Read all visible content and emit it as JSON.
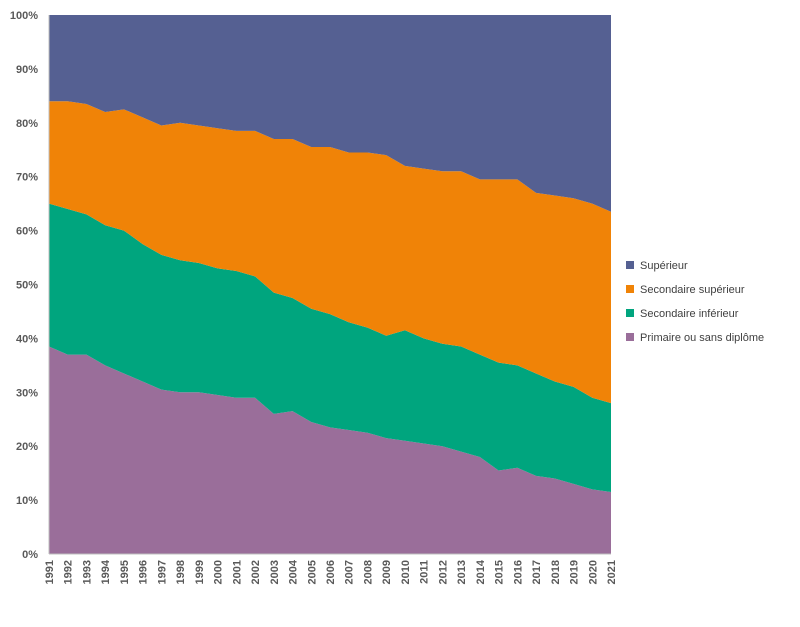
{
  "chart_data": {
    "type": "area",
    "stacked": "percent",
    "x": [
      "1991",
      "1992",
      "1993",
      "1994",
      "1995",
      "1996",
      "1997",
      "1998",
      "1999",
      "2000",
      "2001",
      "2002",
      "2003",
      "2004",
      "2005",
      "2006",
      "2007",
      "2008",
      "2009",
      "2010",
      "2011",
      "2012",
      "2013",
      "2014",
      "2015",
      "2016",
      "2017",
      "2018",
      "2019",
      "2020",
      "2021"
    ],
    "ylim": [
      0,
      100
    ],
    "yticks": [
      "0%",
      "10%",
      "20%",
      "30%",
      "40%",
      "50%",
      "60%",
      "70%",
      "80%",
      "90%",
      "100%"
    ],
    "legend_position": "right",
    "grid": false,
    "series": [
      {
        "name": "Primaire ou sans diplôme",
        "color": "#9A6E9A",
        "values": [
          38.5,
          37.0,
          37.0,
          35.0,
          33.5,
          32.0,
          30.5,
          30.0,
          30.0,
          29.5,
          29.0,
          29.0,
          26.0,
          26.5,
          24.5,
          23.5,
          23.0,
          22.5,
          21.5,
          21.0,
          20.5,
          20.0,
          19.0,
          18.0,
          15.5,
          16.0,
          14.5,
          14.0,
          13.0,
          12.0,
          11.5
        ]
      },
      {
        "name": "Secondaire inférieur",
        "color": "#00A57E",
        "values": [
          26.5,
          27.0,
          26.0,
          26.0,
          26.5,
          25.5,
          25.0,
          24.5,
          24.0,
          23.5,
          23.5,
          22.5,
          22.5,
          21.0,
          21.0,
          21.0,
          20.0,
          19.5,
          19.0,
          20.5,
          19.5,
          19.0,
          19.5,
          19.0,
          20.0,
          19.0,
          19.0,
          18.0,
          18.0,
          17.0,
          16.5
        ]
      },
      {
        "name": "Secondaire supérieur",
        "color": "#F08307",
        "values": [
          19.0,
          20.0,
          20.5,
          21.0,
          22.5,
          23.5,
          24.0,
          25.5,
          25.5,
          26.0,
          26.0,
          27.0,
          28.5,
          29.5,
          30.0,
          31.0,
          31.5,
          32.5,
          33.5,
          30.5,
          31.5,
          32.0,
          32.5,
          32.5,
          34.0,
          34.5,
          33.5,
          34.5,
          35.0,
          36.0,
          35.5
        ]
      },
      {
        "name": "Supérieur",
        "color": "#556092",
        "values": [
          16.0,
          16.0,
          16.5,
          18.0,
          17.5,
          19.0,
          20.5,
          20.0,
          20.5,
          21.0,
          21.5,
          21.5,
          23.0,
          23.0,
          24.5,
          24.5,
          25.5,
          25.5,
          26.0,
          28.0,
          28.5,
          29.0,
          29.0,
          30.5,
          30.5,
          30.5,
          33.0,
          33.5,
          34.0,
          35.0,
          36.5
        ]
      }
    ]
  }
}
